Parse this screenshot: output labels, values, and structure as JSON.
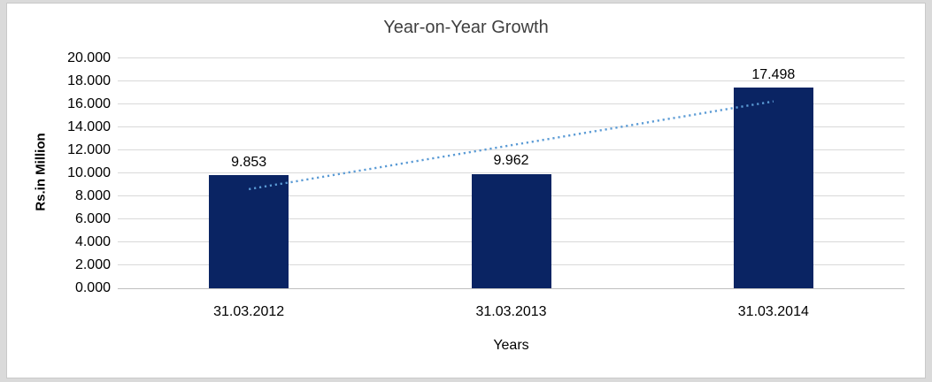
{
  "chart_data": {
    "type": "bar",
    "title": "Year-on-Year Growth",
    "xlabel": "Years",
    "ylabel": "Rs.in Million",
    "categories": [
      "31.03.2012",
      "31.03.2013",
      "31.03.2014"
    ],
    "values": [
      9.853,
      9.962,
      17.498
    ],
    "value_labels": [
      "9.853",
      "9.962",
      "17.498"
    ],
    "ylim": [
      0,
      20
    ],
    "ytick_step": 2,
    "ytick_labels": [
      "0.000",
      "2.000",
      "4.000",
      "6.000",
      "8.000",
      "10.000",
      "12.000",
      "14.000",
      "16.000",
      "18.000",
      "20.000"
    ],
    "grid": true,
    "legend_position": "none",
    "bar_color": "#0A2463",
    "gridline_color": "#D9D9D9",
    "axis_line_color": "#BFBFBF",
    "trendline": {
      "type": "linear",
      "style": "dotted",
      "color": "#5B9BD5",
      "start_value": 8.62,
      "end_value": 16.26
    }
  }
}
